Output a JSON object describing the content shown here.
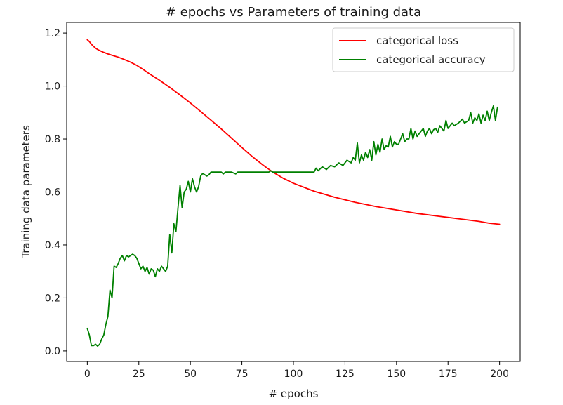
{
  "chart_data": {
    "type": "line",
    "title": "# epochs vs Parameters of training data",
    "xlabel": "# epochs",
    "ylabel": "Training data parameters",
    "xlim": [
      -10,
      210
    ],
    "ylim": [
      -0.04,
      1.24
    ],
    "xticks": [
      0,
      25,
      50,
      75,
      100,
      125,
      150,
      175,
      200
    ],
    "yticks": [
      0.0,
      0.2,
      0.4,
      0.6,
      0.8,
      1.0,
      1.2
    ],
    "grid": false,
    "legend_position": "top-right",
    "series": [
      {
        "name": "categorical loss",
        "color": "#ff0000",
        "points": [
          [
            0,
            1.175
          ],
          [
            1,
            1.168
          ],
          [
            2,
            1.158
          ],
          [
            3,
            1.15
          ],
          [
            4,
            1.143
          ],
          [
            5,
            1.138
          ],
          [
            6,
            1.134
          ],
          [
            8,
            1.127
          ],
          [
            10,
            1.121
          ],
          [
            12,
            1.116
          ],
          [
            15,
            1.109
          ],
          [
            18,
            1.1
          ],
          [
            21,
            1.09
          ],
          [
            24,
            1.078
          ],
          [
            27,
            1.063
          ],
          [
            30,
            1.047
          ],
          [
            35,
            1.022
          ],
          [
            40,
            0.995
          ],
          [
            45,
            0.966
          ],
          [
            50,
            0.936
          ],
          [
            55,
            0.904
          ],
          [
            60,
            0.871
          ],
          [
            65,
            0.838
          ],
          [
            70,
            0.803
          ],
          [
            75,
            0.768
          ],
          [
            80,
            0.734
          ],
          [
            85,
            0.703
          ],
          [
            90,
            0.675
          ],
          [
            95,
            0.652
          ],
          [
            100,
            0.633
          ],
          [
            110,
            0.603
          ],
          [
            120,
            0.58
          ],
          [
            130,
            0.561
          ],
          [
            140,
            0.545
          ],
          [
            150,
            0.532
          ],
          [
            160,
            0.519
          ],
          [
            170,
            0.509
          ],
          [
            180,
            0.499
          ],
          [
            190,
            0.489
          ],
          [
            195,
            0.482
          ],
          [
            200,
            0.478
          ]
        ]
      },
      {
        "name": "categorical accuracy",
        "color": "#008000",
        "points": [
          [
            0,
            0.085
          ],
          [
            1,
            0.06
          ],
          [
            2,
            0.02
          ],
          [
            3,
            0.02
          ],
          [
            4,
            0.025
          ],
          [
            5,
            0.018
          ],
          [
            6,
            0.025
          ],
          [
            7,
            0.045
          ],
          [
            8,
            0.06
          ],
          [
            9,
            0.1
          ],
          [
            10,
            0.13
          ],
          [
            11,
            0.23
          ],
          [
            12,
            0.2
          ],
          [
            13,
            0.32
          ],
          [
            14,
            0.315
          ],
          [
            15,
            0.33
          ],
          [
            16,
            0.35
          ],
          [
            17,
            0.36
          ],
          [
            18,
            0.34
          ],
          [
            19,
            0.36
          ],
          [
            20,
            0.355
          ],
          [
            21,
            0.36
          ],
          [
            22,
            0.365
          ],
          [
            23,
            0.36
          ],
          [
            24,
            0.35
          ],
          [
            25,
            0.33
          ],
          [
            26,
            0.31
          ],
          [
            27,
            0.32
          ],
          [
            28,
            0.3
          ],
          [
            29,
            0.315
          ],
          [
            30,
            0.29
          ],
          [
            31,
            0.31
          ],
          [
            32,
            0.305
          ],
          [
            33,
            0.28
          ],
          [
            34,
            0.31
          ],
          [
            35,
            0.3
          ],
          [
            36,
            0.32
          ],
          [
            37,
            0.31
          ],
          [
            38,
            0.3
          ],
          [
            39,
            0.32
          ],
          [
            40,
            0.44
          ],
          [
            41,
            0.37
          ],
          [
            42,
            0.48
          ],
          [
            43,
            0.45
          ],
          [
            44,
            0.54
          ],
          [
            45,
            0.625
          ],
          [
            46,
            0.54
          ],
          [
            47,
            0.6
          ],
          [
            48,
            0.61
          ],
          [
            49,
            0.64
          ],
          [
            50,
            0.6
          ],
          [
            51,
            0.65
          ],
          [
            52,
            0.62
          ],
          [
            53,
            0.6
          ],
          [
            54,
            0.62
          ],
          [
            55,
            0.66
          ],
          [
            56,
            0.67
          ],
          [
            57,
            0.665
          ],
          [
            58,
            0.66
          ],
          [
            59,
            0.665
          ],
          [
            60,
            0.675
          ],
          [
            65,
            0.675
          ],
          [
            66,
            0.668
          ],
          [
            67,
            0.675
          ],
          [
            70,
            0.675
          ],
          [
            72,
            0.668
          ],
          [
            73,
            0.675
          ],
          [
            88,
            0.675
          ],
          [
            89,
            0.68
          ],
          [
            90,
            0.675
          ],
          [
            110,
            0.675
          ],
          [
            111,
            0.69
          ],
          [
            112,
            0.68
          ],
          [
            114,
            0.695
          ],
          [
            116,
            0.685
          ],
          [
            118,
            0.7
          ],
          [
            120,
            0.695
          ],
          [
            122,
            0.71
          ],
          [
            124,
            0.7
          ],
          [
            126,
            0.72
          ],
          [
            128,
            0.71
          ],
          [
            129,
            0.73
          ],
          [
            130,
            0.72
          ],
          [
            131,
            0.785
          ],
          [
            132,
            0.71
          ],
          [
            133,
            0.74
          ],
          [
            134,
            0.72
          ],
          [
            135,
            0.75
          ],
          [
            136,
            0.73
          ],
          [
            137,
            0.76
          ],
          [
            138,
            0.72
          ],
          [
            139,
            0.79
          ],
          [
            140,
            0.74
          ],
          [
            141,
            0.78
          ],
          [
            142,
            0.75
          ],
          [
            143,
            0.8
          ],
          [
            144,
            0.76
          ],
          [
            145,
            0.775
          ],
          [
            146,
            0.77
          ],
          [
            147,
            0.81
          ],
          [
            148,
            0.77
          ],
          [
            149,
            0.79
          ],
          [
            150,
            0.78
          ],
          [
            151,
            0.78
          ],
          [
            152,
            0.8
          ],
          [
            153,
            0.82
          ],
          [
            154,
            0.79
          ],
          [
            155,
            0.8
          ],
          [
            156,
            0.8
          ],
          [
            157,
            0.84
          ],
          [
            158,
            0.8
          ],
          [
            159,
            0.83
          ],
          [
            160,
            0.81
          ],
          [
            161,
            0.82
          ],
          [
            162,
            0.83
          ],
          [
            163,
            0.84
          ],
          [
            164,
            0.81
          ],
          [
            165,
            0.83
          ],
          [
            166,
            0.84
          ],
          [
            167,
            0.82
          ],
          [
            168,
            0.835
          ],
          [
            169,
            0.84
          ],
          [
            170,
            0.825
          ],
          [
            171,
            0.85
          ],
          [
            172,
            0.84
          ],
          [
            173,
            0.83
          ],
          [
            174,
            0.87
          ],
          [
            175,
            0.84
          ],
          [
            176,
            0.85
          ],
          [
            177,
            0.86
          ],
          [
            178,
            0.85
          ],
          [
            180,
            0.86
          ],
          [
            182,
            0.875
          ],
          [
            183,
            0.86
          ],
          [
            185,
            0.87
          ],
          [
            186,
            0.9
          ],
          [
            187,
            0.86
          ],
          [
            188,
            0.88
          ],
          [
            189,
            0.87
          ],
          [
            190,
            0.895
          ],
          [
            191,
            0.86
          ],
          [
            192,
            0.89
          ],
          [
            193,
            0.87
          ],
          [
            194,
            0.905
          ],
          [
            195,
            0.87
          ],
          [
            196,
            0.9
          ],
          [
            197,
            0.925
          ],
          [
            198,
            0.87
          ],
          [
            199,
            0.92
          ]
        ]
      }
    ]
  }
}
